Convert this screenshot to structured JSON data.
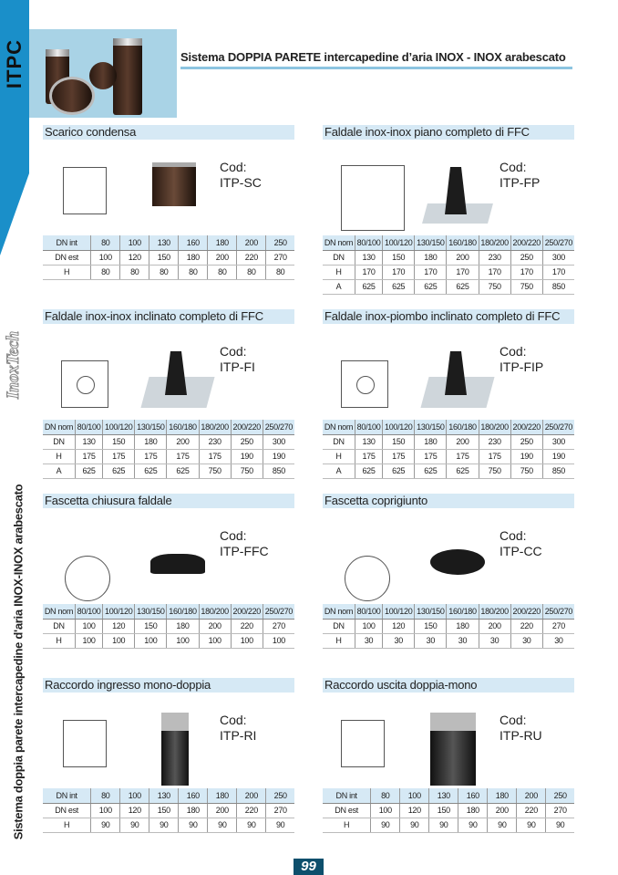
{
  "brand": "ITPC",
  "logo": "InoxTech",
  "side_text": "Sistema doppia parete intercapedine d'aria INOX-INOX  arabescato",
  "title": "Sistema DOPPIA PARETE intercapedine d’aria INOX - INOX arabescato",
  "page_number": "99",
  "colors": {
    "accent": "#1a8fc9",
    "header_bg": "#d6e9f5",
    "page_badge": "#0d4f6c"
  },
  "sections": [
    {
      "title": "Scarico condensa",
      "cod_label": "Cod:",
      "code": "ITP-SC",
      "table": [
        [
          "DN int",
          "80",
          "100",
          "130",
          "160",
          "180",
          "200",
          "250"
        ],
        [
          "DN est",
          "100",
          "120",
          "150",
          "180",
          "200",
          "220",
          "270"
        ],
        [
          "H",
          "80",
          "80",
          "80",
          "80",
          "80",
          "80",
          "80"
        ]
      ]
    },
    {
      "title": "Faldale inox-inox piano completo di FFC",
      "cod_label": "Cod:",
      "code": "ITP-FP",
      "table": [
        [
          "DN nom",
          "80/100",
          "100/120",
          "130/150",
          "160/180",
          "180/200",
          "200/220",
          "250/270"
        ],
        [
          "DN",
          "130",
          "150",
          "180",
          "200",
          "230",
          "250",
          "300"
        ],
        [
          "H",
          "170",
          "170",
          "170",
          "170",
          "170",
          "170",
          "170"
        ],
        [
          "A",
          "625",
          "625",
          "625",
          "625",
          "750",
          "750",
          "850"
        ]
      ]
    },
    {
      "title": "Faldale inox-inox inclinato completo di FFC",
      "cod_label": "Cod:",
      "code": "ITP-FI",
      "table": [
        [
          "DN nom",
          "80/100",
          "100/120",
          "130/150",
          "160/180",
          "180/200",
          "200/220",
          "250/270"
        ],
        [
          "DN",
          "130",
          "150",
          "180",
          "200",
          "230",
          "250",
          "300"
        ],
        [
          "H",
          "175",
          "175",
          "175",
          "175",
          "175",
          "190",
          "190"
        ],
        [
          "A",
          "625",
          "625",
          "625",
          "625",
          "750",
          "750",
          "850"
        ]
      ]
    },
    {
      "title": "Faldale inox-piombo inclinato completo di FFC",
      "cod_label": "Cod:",
      "code": "ITP-FIP",
      "table": [
        [
          "DN nom",
          "80/100",
          "100/120",
          "130/150",
          "160/180",
          "180/200",
          "200/220",
          "250/270"
        ],
        [
          "DN",
          "130",
          "150",
          "180",
          "200",
          "230",
          "250",
          "300"
        ],
        [
          "H",
          "175",
          "175",
          "175",
          "175",
          "175",
          "190",
          "190"
        ],
        [
          "A",
          "625",
          "625",
          "625",
          "625",
          "750",
          "750",
          "850"
        ]
      ]
    },
    {
      "title": "Fascetta chiusura faldale",
      "cod_label": "Cod:",
      "code": "ITP-FFC",
      "table": [
        [
          "DN nom",
          "80/100",
          "100/120",
          "130/150",
          "160/180",
          "180/200",
          "200/220",
          "250/270"
        ],
        [
          "DN",
          "100",
          "120",
          "150",
          "180",
          "200",
          "220",
          "270"
        ],
        [
          "H",
          "100",
          "100",
          "100",
          "100",
          "100",
          "100",
          "100"
        ]
      ]
    },
    {
      "title": "Fascetta coprigiunto",
      "cod_label": "Cod:",
      "code": "ITP-CC",
      "table": [
        [
          "DN nom",
          "80/100",
          "100/120",
          "130/150",
          "160/180",
          "180/200",
          "200/220",
          "250/270"
        ],
        [
          "DN",
          "100",
          "120",
          "150",
          "180",
          "200",
          "220",
          "270"
        ],
        [
          "H",
          "30",
          "30",
          "30",
          "30",
          "30",
          "30",
          "30"
        ]
      ]
    },
    {
      "title": "Raccordo ingresso mono-doppia",
      "cod_label": "Cod:",
      "code": "ITP-RI",
      "table": [
        [
          "DN int",
          "80",
          "100",
          "130",
          "160",
          "180",
          "200",
          "250"
        ],
        [
          "DN est",
          "100",
          "120",
          "150",
          "180",
          "200",
          "220",
          "270"
        ],
        [
          "H",
          "90",
          "90",
          "90",
          "90",
          "90",
          "90",
          "90"
        ]
      ]
    },
    {
      "title": "Raccordo uscita doppia-mono",
      "cod_label": "Cod:",
      "code": "ITP-RU",
      "table": [
        [
          "DN int",
          "80",
          "100",
          "130",
          "160",
          "180",
          "200",
          "250"
        ],
        [
          "DN est",
          "100",
          "120",
          "150",
          "180",
          "200",
          "220",
          "270"
        ],
        [
          "H",
          "90",
          "90",
          "90",
          "90",
          "90",
          "90",
          "90"
        ]
      ]
    }
  ]
}
